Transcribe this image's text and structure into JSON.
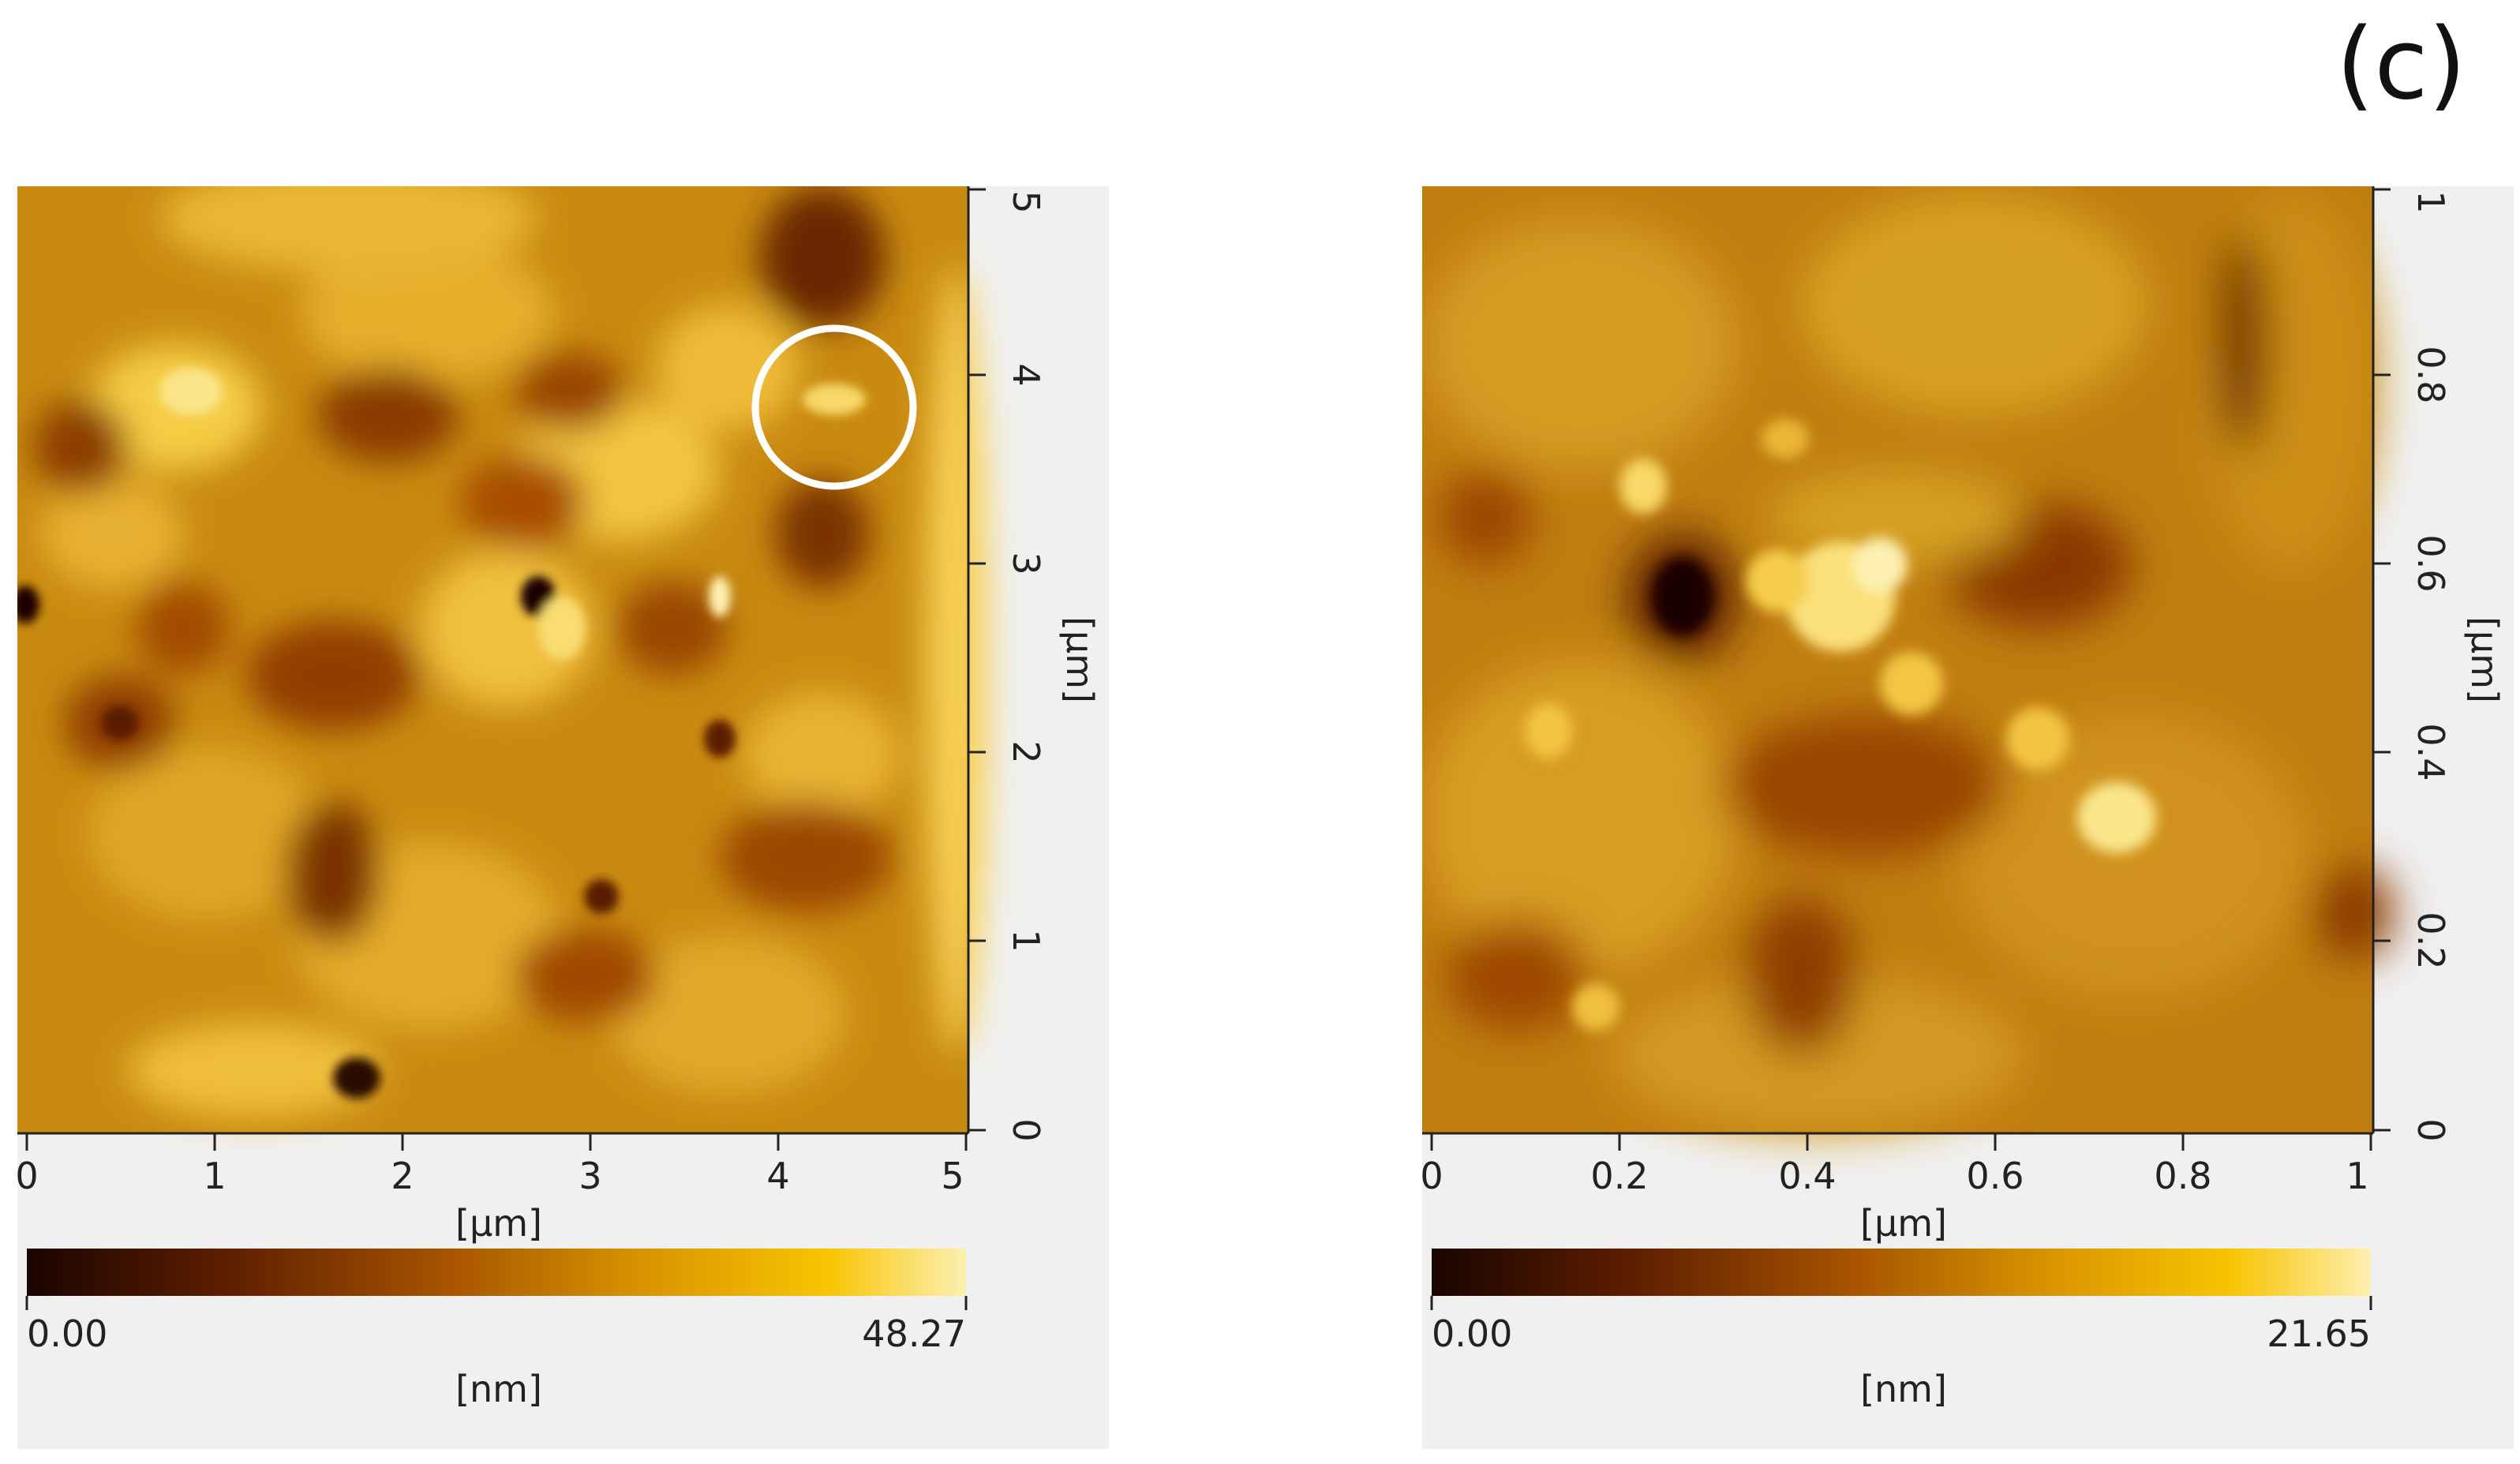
{
  "figure_label": "(c)",
  "panels": [
    {
      "name": "left",
      "x_ticks": [
        "0",
        "1",
        "2",
        "3",
        "4",
        "5"
      ],
      "y_ticks": [
        "0",
        "1",
        "2",
        "3",
        "4",
        "5"
      ],
      "x_unit": "[µm]",
      "y_unit": "[µm]",
      "scale_min": "0.00",
      "scale_max": "48.27",
      "scale_unit": "[nm]"
    },
    {
      "name": "right",
      "x_ticks": [
        "0",
        "0.2",
        "0.4",
        "0.6",
        "0.8",
        "1"
      ],
      "y_ticks": [
        "0",
        "0.2",
        "0.4",
        "0.6",
        "0.8",
        "1"
      ],
      "x_unit": "[µm]",
      "y_unit": "[µm]",
      "scale_min": "0.00",
      "scale_max": "21.65",
      "scale_unit": "[nm]"
    }
  ],
  "colors": {
    "colormap": [
      "#1a0500",
      "#5a1c00",
      "#a85400",
      "#d89200",
      "#f7c400",
      "#fdf0b0"
    ],
    "annotation": "#ffffff"
  }
}
